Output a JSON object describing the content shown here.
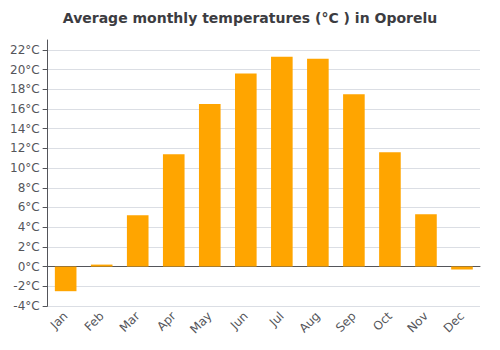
{
  "chart_data": {
    "type": "bar",
    "title": "Average monthly temperatures (°C ) in Oporelu",
    "categories": [
      "Jan",
      "Feb",
      "Mar",
      "Apr",
      "May",
      "Jun",
      "Jul",
      "Aug",
      "Sep",
      "Oct",
      "Nov",
      "Dec"
    ],
    "values": [
      -2.5,
      0.2,
      5.2,
      11.4,
      16.5,
      19.6,
      21.3,
      21.1,
      17.5,
      11.6,
      5.3,
      -0.3
    ],
    "color": "#FFA500",
    "ylim": [
      -4,
      23
    ],
    "yticks": [
      {
        "value": -4,
        "label": "-4°C"
      },
      {
        "value": -2,
        "label": "-2°C"
      },
      {
        "value": 0,
        "label": "0°C"
      },
      {
        "value": 2,
        "label": "2°C"
      },
      {
        "value": 4,
        "label": "4°C"
      },
      {
        "value": 6,
        "label": "6°C"
      },
      {
        "value": 8,
        "label": "8°C"
      },
      {
        "value": 10,
        "label": "10°C"
      },
      {
        "value": 12,
        "label": "12°C"
      },
      {
        "value": 14,
        "label": "14°C"
      },
      {
        "value": 16,
        "label": "16°C"
      },
      {
        "value": 18,
        "label": "18°C"
      },
      {
        "value": 20,
        "label": "20°C"
      },
      {
        "value": 22,
        "label": "22°C"
      }
    ],
    "grid": true
  }
}
